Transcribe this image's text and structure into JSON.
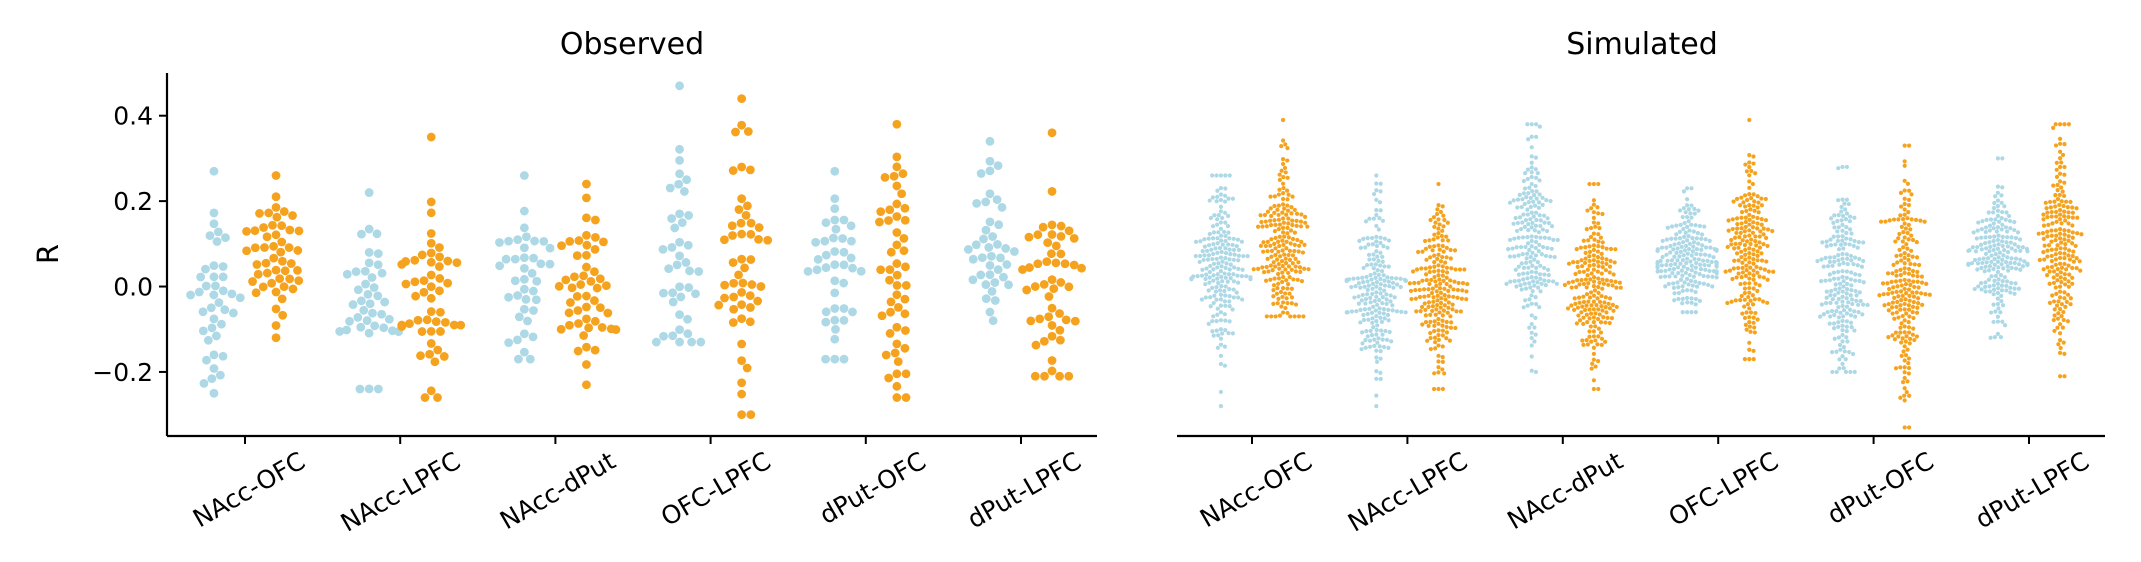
{
  "chart_data": [
    {
      "type": "scatter",
      "subtype": "swarm",
      "title": "Observed",
      "xlabel": "",
      "ylabel": "R",
      "ylim": [
        -0.35,
        0.5
      ],
      "yticks": [
        -0.2,
        0.0,
        0.2,
        0.4
      ],
      "ytick_labels": [
        "−0.2",
        "0.0",
        "0.2",
        "0.4"
      ],
      "categories": [
        "NAcc-OFC",
        "NAcc-LPFC",
        "NAcc-dPut",
        "OFC-LPFC",
        "dPut-OFC",
        "dPut-LPFC"
      ],
      "series_colors": [
        "#add8e6",
        "#f5a31f"
      ],
      "groups": [
        {
          "category": "NAcc-OFC",
          "light": {
            "n": 40,
            "min": -0.25,
            "max": 0.27,
            "center": 0.0
          },
          "orange": {
            "n": 50,
            "min": -0.12,
            "max": 0.26,
            "center": 0.07
          }
        },
        {
          "category": "NAcc-LPFC",
          "light": {
            "n": 40,
            "min": -0.24,
            "max": 0.22,
            "center": -0.05
          },
          "orange": {
            "n": 50,
            "min": -0.26,
            "max": 0.35,
            "center": 0.0
          }
        },
        {
          "category": "NAcc-dPut",
          "light": {
            "n": 40,
            "min": -0.17,
            "max": 0.26,
            "center": 0.0
          },
          "orange": {
            "n": 50,
            "min": -0.23,
            "max": 0.24,
            "center": 0.0
          }
        },
        {
          "category": "OFC-LPFC",
          "light": {
            "n": 40,
            "min": -0.13,
            "max": 0.47,
            "center": 0.1
          },
          "orange": {
            "n": 50,
            "min": -0.3,
            "max": 0.44,
            "center": 0.05
          }
        },
        {
          "category": "dPut-OFC",
          "light": {
            "n": 40,
            "min": -0.17,
            "max": 0.27,
            "center": 0.03
          },
          "orange": {
            "n": 50,
            "min": -0.26,
            "max": 0.38,
            "center": 0.0
          }
        },
        {
          "category": "dPut-LPFC",
          "light": {
            "n": 40,
            "min": -0.08,
            "max": 0.34,
            "center": 0.1
          },
          "orange": {
            "n": 50,
            "min": -0.21,
            "max": 0.36,
            "center": 0.0
          }
        }
      ]
    },
    {
      "type": "scatter",
      "subtype": "swarm",
      "title": "Simulated",
      "xlabel": "",
      "ylabel": "",
      "ylim": [
        -0.35,
        0.5
      ],
      "categories": [
        "NAcc-OFC",
        "NAcc-LPFC",
        "NAcc-dPut",
        "OFC-LPFC",
        "dPut-OFC",
        "dPut-LPFC"
      ],
      "series_colors": [
        "#add8e6",
        "#f5a31f"
      ],
      "groups": [
        {
          "category": "NAcc-OFC",
          "light": {
            "n": 200,
            "min": -0.28,
            "max": 0.26,
            "center": 0.05
          },
          "orange": {
            "n": 200,
            "min": -0.07,
            "max": 0.39,
            "center": 0.1
          }
        },
        {
          "category": "NAcc-LPFC",
          "light": {
            "n": 200,
            "min": -0.28,
            "max": 0.26,
            "center": 0.0
          },
          "orange": {
            "n": 200,
            "min": -0.24,
            "max": 0.24,
            "center": 0.0
          }
        },
        {
          "category": "NAcc-dPut",
          "light": {
            "n": 200,
            "min": -0.2,
            "max": 0.38,
            "center": 0.1
          },
          "orange": {
            "n": 200,
            "min": -0.24,
            "max": 0.24,
            "center": 0.0
          }
        },
        {
          "category": "OFC-LPFC",
          "light": {
            "n": 200,
            "min": -0.06,
            "max": 0.23,
            "center": 0.07
          },
          "orange": {
            "n": 200,
            "min": -0.17,
            "max": 0.39,
            "center": 0.07
          }
        },
        {
          "category": "dPut-OFC",
          "light": {
            "n": 200,
            "min": -0.2,
            "max": 0.28,
            "center": 0.02
          },
          "orange": {
            "n": 200,
            "min": -0.33,
            "max": 0.33,
            "center": 0.0
          }
        },
        {
          "category": "dPut-LPFC",
          "light": {
            "n": 200,
            "min": -0.12,
            "max": 0.3,
            "center": 0.07
          },
          "orange": {
            "n": 200,
            "min": -0.21,
            "max": 0.38,
            "center": 0.1
          }
        }
      ]
    }
  ]
}
